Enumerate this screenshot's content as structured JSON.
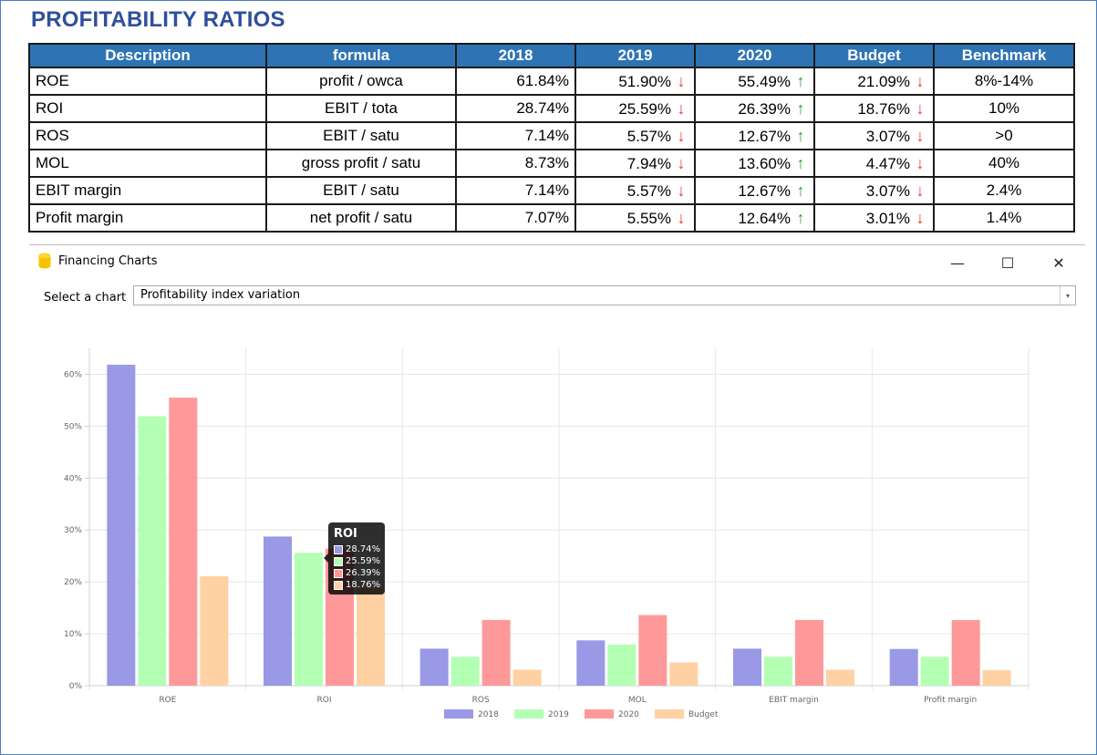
{
  "header": {
    "title": "PROFITABILITY RATIOS"
  },
  "table": {
    "columns": [
      "Description",
      "formula",
      "2018",
      "2019",
      "2020",
      "Budget",
      "Benchmark"
    ],
    "rows": [
      {
        "desc": "ROE",
        "formula": "profit / owca",
        "v2018": "61.84%",
        "v2019": "51.90%",
        "v2019_arrow": "↓",
        "v2020": "55.49%",
        "v2020_arrow": "↑",
        "budget": "21.09%",
        "budget_arrow": "↓",
        "benchmark": "8%-14%"
      },
      {
        "desc": "ROI",
        "formula": "EBIT / tota",
        "v2018": "28.74%",
        "v2019": "25.59%",
        "v2019_arrow": "↓",
        "v2020": "26.39%",
        "v2020_arrow": "↑",
        "budget": "18.76%",
        "budget_arrow": "↓",
        "benchmark": "10%"
      },
      {
        "desc": "ROS",
        "formula": "EBIT / satu",
        "v2018": "7.14%",
        "v2019": "5.57%",
        "v2019_arrow": "↓",
        "v2020": "12.67%",
        "v2020_arrow": "↑",
        "budget": "3.07%",
        "budget_arrow": "↓",
        "benchmark": ">0"
      },
      {
        "desc": "MOL",
        "formula": "gross profit / satu",
        "v2018": "8.73%",
        "v2019": "7.94%",
        "v2019_arrow": "↓",
        "v2020": "13.60%",
        "v2020_arrow": "↑",
        "budget": "4.47%",
        "budget_arrow": "↓",
        "benchmark": "40%"
      },
      {
        "desc": "EBIT margin",
        "formula": "EBIT / satu",
        "v2018": "7.14%",
        "v2019": "5.57%",
        "v2019_arrow": "↓",
        "v2020": "12.67%",
        "v2020_arrow": "↑",
        "budget": "3.07%",
        "budget_arrow": "↓",
        "benchmark": "2.4%"
      },
      {
        "desc": "Profit margin",
        "formula": "net profit / satu",
        "v2018": "7.07%",
        "v2019": "5.55%",
        "v2019_arrow": "↓",
        "v2020": "12.64%",
        "v2020_arrow": "↑",
        "budget": "3.01%",
        "budget_arrow": "↓",
        "benchmark": "1.4%"
      }
    ]
  },
  "window": {
    "title": "Financing Charts",
    "minimize_glyph": "—",
    "maximize_glyph": "☐",
    "close_glyph": "✕",
    "select_label": "Select a chart",
    "select_value": "Profitability index variation",
    "dropdown_glyph": "▾"
  },
  "tooltip": {
    "title": "ROI",
    "items": [
      "28.74%",
      "25.59%",
      "26.39%",
      "18.76%"
    ]
  },
  "colors": {
    "s2018": "#9999e6",
    "s2019": "#b3ffb3",
    "s2020": "#ff9999",
    "budget": "#ffd1a3",
    "header_blue": "#2e74b5",
    "title_blue": "#2f4f9e",
    "arrow_down": "#e53935",
    "arrow_up": "#2e9e2e"
  },
  "chart_data": {
    "type": "bar",
    "categories": [
      "ROE",
      "ROI",
      "ROS",
      "MOL",
      "EBIT margin",
      "Profit margin"
    ],
    "series": [
      {
        "name": "2018",
        "values": [
          61.84,
          28.74,
          7.14,
          8.73,
          7.14,
          7.07
        ]
      },
      {
        "name": "2019",
        "values": [
          51.9,
          25.59,
          5.57,
          7.94,
          5.57,
          5.55
        ]
      },
      {
        "name": "2020",
        "values": [
          55.49,
          26.39,
          12.67,
          13.6,
          12.67,
          12.64
        ]
      },
      {
        "name": "Budget",
        "values": [
          21.09,
          18.76,
          3.07,
          4.47,
          3.07,
          3.01
        ]
      }
    ],
    "yticks": [
      "0%",
      "10%",
      "20%",
      "30%",
      "40%",
      "50%",
      "60%"
    ],
    "ylim": [
      0,
      65
    ],
    "grid": true,
    "legend_position": "bottom"
  }
}
